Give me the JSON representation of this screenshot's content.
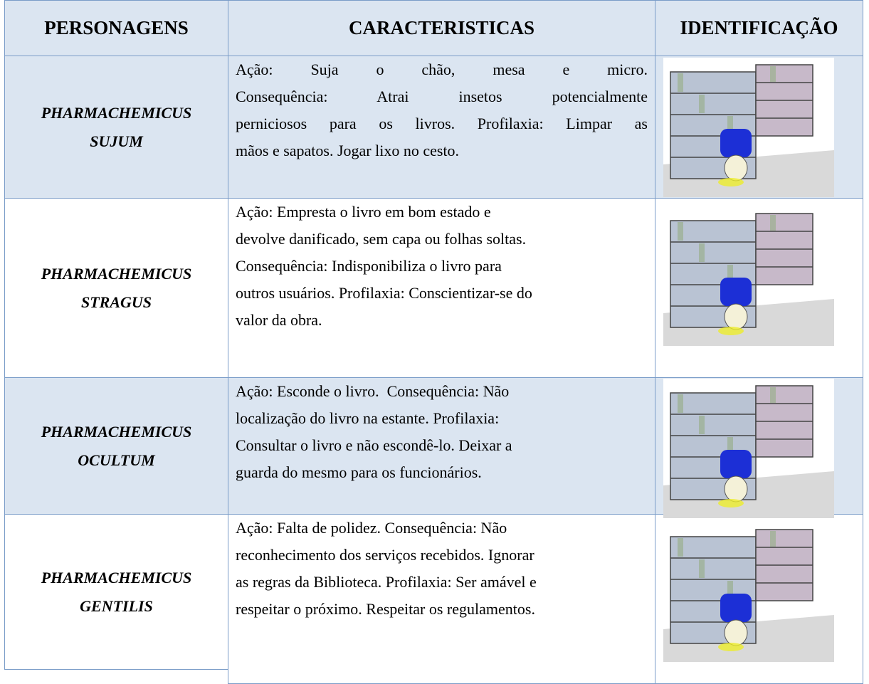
{
  "table": {
    "header": [
      "PERSONAGENS",
      "CARACTERISTICAS",
      "IDENTIFICAÇÃO"
    ],
    "rows": [
      {
        "name": [
          "PHARMACHEMICUS",
          "SUJUM"
        ],
        "characteristics": [
          "Ação:  Suja  o  chão,  mesa  e  micro.",
          "Consequência:  Atrai  insetos  potencialmente",
          "perniciosos para os livros. Profilaxia: Limpar as",
          "mãos e sapatos. Jogar lixo no cesto."
        ]
      },
      {
        "name": [
          "PHARMACHEMICUS",
          "STRAGUS"
        ],
        "characteristics": [
          "Ação: Empresta o livro em bom estado e",
          "devolve danificado, sem capa ou folhas soltas.",
          "Consequência: Indisponibiliza o livro para",
          "outros usuários. Profilaxia: Conscientizar-se do",
          "valor da obra."
        ]
      },
      {
        "name": [
          "PHARMACHEMICUS",
          "OCULTUM"
        ],
        "characteristics": [
          "Ação: Esconde o livro.  Consequência: Não",
          "localização do livro na estante. Profilaxia:",
          "Consultar o livro e não escondê-lo. Deixar a",
          "guarda do mesmo para os funcionários."
        ]
      },
      {
        "name": [
          "PHARMACHEMICUS",
          "GENTILIS"
        ],
        "characteristics": [
          "Ação: Falta de polidez. Consequência: Não",
          "reconhecimento dos serviços recebidos. Ignorar",
          "as regras da Biblioteca. Profilaxia: Ser amável e",
          "respeitar o próximo. Respeitar os regulamentos."
        ]
      }
    ]
  }
}
